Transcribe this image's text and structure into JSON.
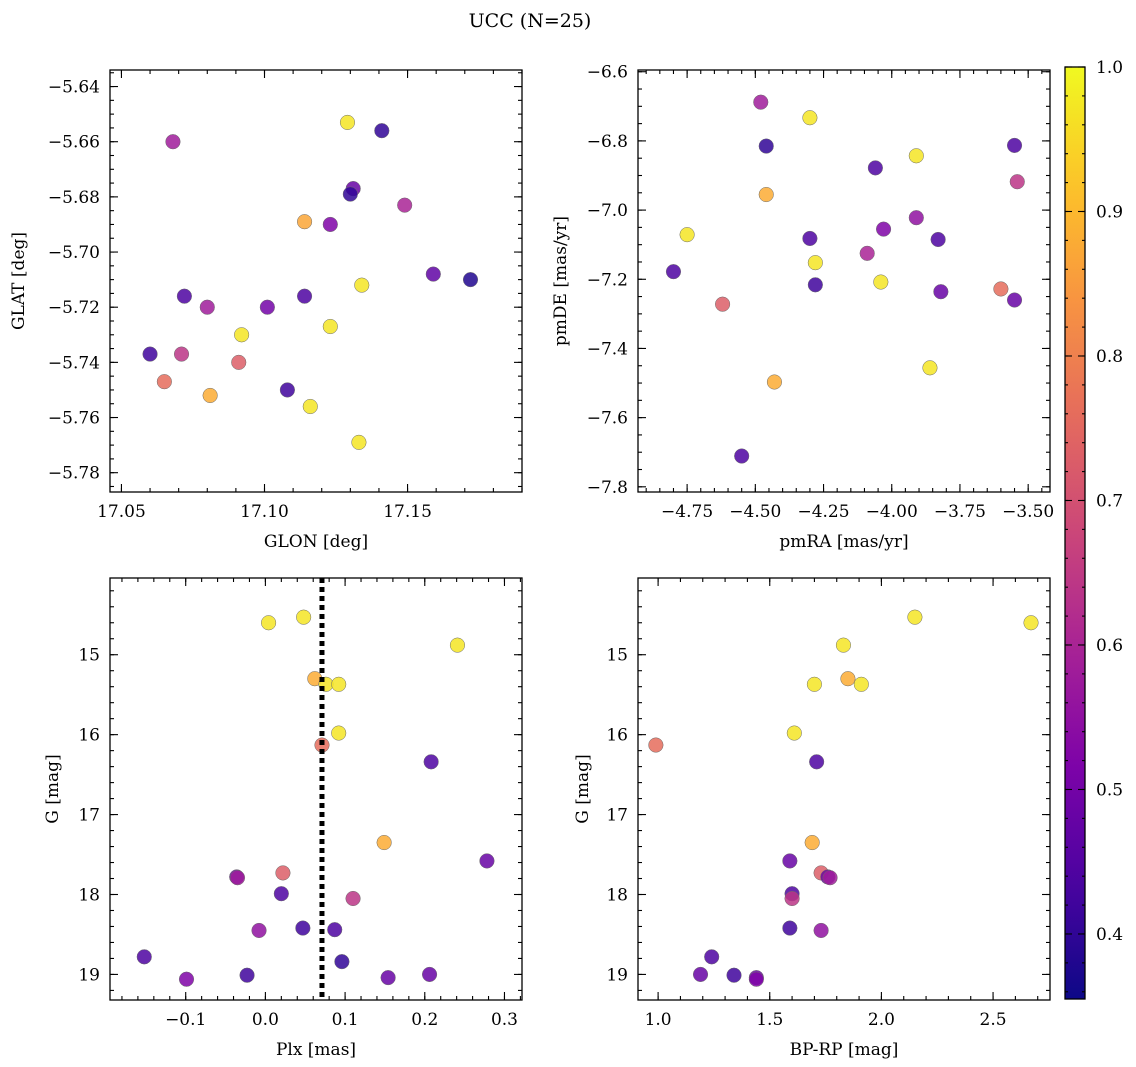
{
  "figure_title": "UCC (N=25)",
  "colorbar": {
    "cmap": "plasma",
    "range": [
      0.355,
      1.0
    ],
    "ticks": [
      "0.4",
      "0.5",
      "0.6",
      "0.7",
      "0.8",
      "0.9",
      "1.0"
    ],
    "tick_values": [
      0.4,
      0.5,
      0.6,
      0.7,
      0.8,
      0.9,
      1.0
    ]
  },
  "chart_data": [
    {
      "type": "scatter",
      "name": "panel-glon-glat",
      "xlabel": "GLON [deg]",
      "ylabel": "GLAT [deg]",
      "xlim": [
        17.046,
        17.19
      ],
      "ylim": [
        -5.787,
        -5.634
      ],
      "xticks": [
        17.05,
        17.1,
        17.15
      ],
      "xtick_labels": [
        "17.05",
        "17.10",
        "17.15"
      ],
      "xminor": 0.01,
      "yticks": [
        -5.78,
        -5.76,
        -5.74,
        -5.72,
        -5.7,
        -5.68,
        -5.66,
        -5.64
      ],
      "ytick_labels": [
        "−5.78",
        "−5.76",
        "−5.74",
        "−5.72",
        "−5.70",
        "−5.68",
        "−5.66",
        "−5.64"
      ],
      "yminor": 0.005,
      "points": [
        {
          "x": 17.129,
          "y": -5.653,
          "c": 0.97
        },
        {
          "x": 17.141,
          "y": -5.656,
          "c": 0.4
        },
        {
          "x": 17.068,
          "y": -5.66,
          "c": 0.58
        },
        {
          "x": 17.131,
          "y": -5.677,
          "c": 0.48
        },
        {
          "x": 17.13,
          "y": -5.679,
          "c": 0.4
        },
        {
          "x": 17.149,
          "y": -5.683,
          "c": 0.6
        },
        {
          "x": 17.114,
          "y": -5.689,
          "c": 0.87
        },
        {
          "x": 17.123,
          "y": -5.69,
          "c": 0.52
        },
        {
          "x": 17.159,
          "y": -5.708,
          "c": 0.47
        },
        {
          "x": 17.172,
          "y": -5.71,
          "c": 0.38
        },
        {
          "x": 17.134,
          "y": -5.712,
          "c": 0.97
        },
        {
          "x": 17.072,
          "y": -5.716,
          "c": 0.44
        },
        {
          "x": 17.114,
          "y": -5.716,
          "c": 0.44
        },
        {
          "x": 17.08,
          "y": -5.72,
          "c": 0.58
        },
        {
          "x": 17.101,
          "y": -5.72,
          "c": 0.5
        },
        {
          "x": 17.123,
          "y": -5.727,
          "c": 0.97
        },
        {
          "x": 17.092,
          "y": -5.73,
          "c": 0.97
        },
        {
          "x": 17.06,
          "y": -5.737,
          "c": 0.42
        },
        {
          "x": 17.071,
          "y": -5.737,
          "c": 0.64
        },
        {
          "x": 17.091,
          "y": -5.74,
          "c": 0.73
        },
        {
          "x": 17.065,
          "y": -5.747,
          "c": 0.76
        },
        {
          "x": 17.108,
          "y": -5.75,
          "c": 0.42
        },
        {
          "x": 17.081,
          "y": -5.752,
          "c": 0.88
        },
        {
          "x": 17.116,
          "y": -5.756,
          "c": 0.97
        },
        {
          "x": 17.133,
          "y": -5.769,
          "c": 0.97
        }
      ]
    },
    {
      "type": "scatter",
      "name": "panel-pmra-pmde",
      "xlabel": "pmRA [mas/yr]",
      "ylabel": "pmDE [mas/yr]",
      "xlim": [
        -4.93,
        -3.42
      ],
      "ylim": [
        -7.815,
        -6.595
      ],
      "xticks": [
        -4.75,
        -4.5,
        -4.25,
        -4.0,
        -3.75,
        -3.5
      ],
      "xtick_labels": [
        "−4.75",
        "−4.50",
        "−4.25",
        "−4.00",
        "−3.75",
        "−3.50"
      ],
      "xminor": 0.05,
      "yticks": [
        -7.8,
        -7.6,
        -7.4,
        -7.2,
        -7.0,
        -6.8,
        -6.6
      ],
      "ytick_labels": [
        "−7.8",
        "−7.6",
        "−7.4",
        "−7.2",
        "−7.0",
        "−6.8",
        "−6.6"
      ],
      "yminor": 0.05,
      "points": [
        {
          "x": -4.48,
          "y": -6.688,
          "c": 0.58
        },
        {
          "x": -4.3,
          "y": -6.733,
          "c": 0.97
        },
        {
          "x": -4.46,
          "y": -6.815,
          "c": 0.4
        },
        {
          "x": -3.55,
          "y": -6.813,
          "c": 0.44
        },
        {
          "x": -3.91,
          "y": -6.843,
          "c": 0.97
        },
        {
          "x": -4.06,
          "y": -6.878,
          "c": 0.44
        },
        {
          "x": -3.54,
          "y": -6.918,
          "c": 0.64
        },
        {
          "x": -4.46,
          "y": -6.955,
          "c": 0.88
        },
        {
          "x": -3.91,
          "y": -7.022,
          "c": 0.55
        },
        {
          "x": -4.03,
          "y": -7.055,
          "c": 0.52
        },
        {
          "x": -4.75,
          "y": -7.071,
          "c": 0.97
        },
        {
          "x": -4.3,
          "y": -7.082,
          "c": 0.44
        },
        {
          "x": -3.83,
          "y": -7.085,
          "c": 0.44
        },
        {
          "x": -4.09,
          "y": -7.125,
          "c": 0.6
        },
        {
          "x": -4.28,
          "y": -7.152,
          "c": 0.97
        },
        {
          "x": -4.8,
          "y": -7.178,
          "c": 0.44
        },
        {
          "x": -4.04,
          "y": -7.208,
          "c": 0.97
        },
        {
          "x": -4.28,
          "y": -7.216,
          "c": 0.42
        },
        {
          "x": -3.6,
          "y": -7.228,
          "c": 0.76
        },
        {
          "x": -3.82,
          "y": -7.236,
          "c": 0.48
        },
        {
          "x": -3.55,
          "y": -7.26,
          "c": 0.48
        },
        {
          "x": -4.62,
          "y": -7.272,
          "c": 0.73
        },
        {
          "x": -3.86,
          "y": -7.456,
          "c": 0.97
        },
        {
          "x": -4.43,
          "y": -7.497,
          "c": 0.88
        },
        {
          "x": -4.55,
          "y": -7.711,
          "c": 0.44
        }
      ]
    },
    {
      "type": "scatter",
      "name": "panel-plx-g",
      "xlabel": "Plx [mas]",
      "ylabel": "G [mag]",
      "xlim": [
        -0.195,
        0.322
      ],
      "ylim": [
        19.32,
        14.04
      ],
      "y_inverted": true,
      "xticks": [
        -0.1,
        0.0,
        0.1,
        0.2,
        0.3
      ],
      "xtick_labels": [
        "−0.1",
        "0.0",
        "0.1",
        "0.2",
        "0.3"
      ],
      "xminor": 0.02,
      "yticks": [
        15,
        16,
        17,
        18,
        19
      ],
      "ytick_labels": [
        "15",
        "16",
        "17",
        "18",
        "19"
      ],
      "yminor": 0.2,
      "vline": {
        "x": 0.071,
        "style": "dotted",
        "color": "#000000"
      },
      "points": [
        {
          "x": 0.004,
          "y": 14.6,
          "c": 0.97
        },
        {
          "x": 0.048,
          "y": 14.53,
          "c": 0.97
        },
        {
          "x": 0.241,
          "y": 14.88,
          "c": 0.97
        },
        {
          "x": 0.062,
          "y": 15.3,
          "c": 0.88
        },
        {
          "x": 0.076,
          "y": 15.37,
          "c": 0.97
        },
        {
          "x": 0.092,
          "y": 15.37,
          "c": 0.97
        },
        {
          "x": 0.092,
          "y": 15.98,
          "c": 0.97
        },
        {
          "x": 0.071,
          "y": 16.13,
          "c": 0.76
        },
        {
          "x": 0.208,
          "y": 16.34,
          "c": 0.44
        },
        {
          "x": 0.149,
          "y": 17.35,
          "c": 0.88
        },
        {
          "x": 0.278,
          "y": 17.58,
          "c": 0.48
        },
        {
          "x": 0.022,
          "y": 17.73,
          "c": 0.73
        },
        {
          "x": -0.036,
          "y": 17.78,
          "c": 0.48
        },
        {
          "x": -0.035,
          "y": 17.79,
          "c": 0.58
        },
        {
          "x": 0.02,
          "y": 17.99,
          "c": 0.44
        },
        {
          "x": 0.11,
          "y": 18.05,
          "c": 0.64
        },
        {
          "x": 0.047,
          "y": 18.42,
          "c": 0.42
        },
        {
          "x": 0.087,
          "y": 18.44,
          "c": 0.44
        },
        {
          "x": -0.008,
          "y": 18.45,
          "c": 0.55
        },
        {
          "x": -0.152,
          "y": 18.78,
          "c": 0.44
        },
        {
          "x": 0.096,
          "y": 18.84,
          "c": 0.4
        },
        {
          "x": -0.023,
          "y": 19.01,
          "c": 0.42
        },
        {
          "x": 0.206,
          "y": 19.0,
          "c": 0.48
        },
        {
          "x": 0.154,
          "y": 19.04,
          "c": 0.48
        },
        {
          "x": -0.099,
          "y": 19.06,
          "c": 0.52
        }
      ]
    },
    {
      "type": "scatter",
      "name": "panel-bprp-g",
      "xlabel": "BP-RP [mag]",
      "ylabel": "G [mag]",
      "xlim": [
        0.91,
        2.755
      ],
      "ylim": [
        19.32,
        14.04
      ],
      "y_inverted": true,
      "xticks": [
        1.0,
        1.5,
        2.0,
        2.5
      ],
      "xtick_labels": [
        "1.0",
        "1.5",
        "2.0",
        "2.5"
      ],
      "xminor": 0.1,
      "yticks": [
        15,
        16,
        17,
        18,
        19
      ],
      "ytick_labels": [
        "15",
        "16",
        "17",
        "18",
        "19"
      ],
      "yminor": 0.2,
      "points": [
        {
          "x": 2.15,
          "y": 14.53,
          "c": 0.97
        },
        {
          "x": 2.67,
          "y": 14.6,
          "c": 0.97
        },
        {
          "x": 1.83,
          "y": 14.88,
          "c": 0.97
        },
        {
          "x": 1.85,
          "y": 15.3,
          "c": 0.88
        },
        {
          "x": 1.7,
          "y": 15.37,
          "c": 0.97
        },
        {
          "x": 1.91,
          "y": 15.37,
          "c": 0.97
        },
        {
          "x": 1.61,
          "y": 15.98,
          "c": 0.97
        },
        {
          "x": 0.99,
          "y": 16.13,
          "c": 0.76
        },
        {
          "x": 1.71,
          "y": 16.34,
          "c": 0.44
        },
        {
          "x": 1.69,
          "y": 17.35,
          "c": 0.88
        },
        {
          "x": 1.59,
          "y": 17.58,
          "c": 0.48
        },
        {
          "x": 1.73,
          "y": 17.73,
          "c": 0.73
        },
        {
          "x": 1.76,
          "y": 17.78,
          "c": 0.48
        },
        {
          "x": 1.77,
          "y": 17.79,
          "c": 0.58
        },
        {
          "x": 1.6,
          "y": 17.99,
          "c": 0.44
        },
        {
          "x": 1.6,
          "y": 18.05,
          "c": 0.64
        },
        {
          "x": 1.59,
          "y": 18.42,
          "c": 0.42
        },
        {
          "x": 1.73,
          "y": 18.45,
          "c": 0.55
        },
        {
          "x": 1.24,
          "y": 18.78,
          "c": 0.44
        },
        {
          "x": 1.19,
          "y": 19.0,
          "c": 0.48
        },
        {
          "x": 1.34,
          "y": 19.01,
          "c": 0.42
        },
        {
          "x": 1.44,
          "y": 19.04,
          "c": 0.48
        },
        {
          "x": 1.44,
          "y": 19.06,
          "c": 0.52
        }
      ]
    }
  ]
}
